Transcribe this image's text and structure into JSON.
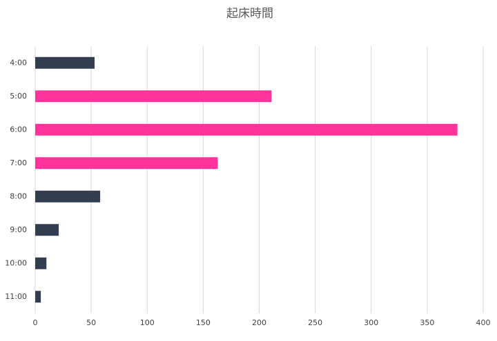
{
  "chart_data": {
    "type": "barh",
    "title": "起床時間",
    "categories": [
      "4:00",
      "5:00",
      "6:00",
      "7:00",
      "8:00",
      "9:00",
      "10:00",
      "11:00"
    ],
    "values": [
      53,
      211,
      377,
      163,
      58,
      21,
      10,
      5
    ],
    "colors": [
      "#333d50",
      "#ff3399",
      "#ff3399",
      "#ff3399",
      "#333d50",
      "#333d50",
      "#333d50",
      "#333d50"
    ],
    "xlim": [
      0,
      400
    ],
    "xticks": [
      0,
      50,
      100,
      150,
      200,
      250,
      300,
      350,
      400
    ],
    "grid": true
  }
}
